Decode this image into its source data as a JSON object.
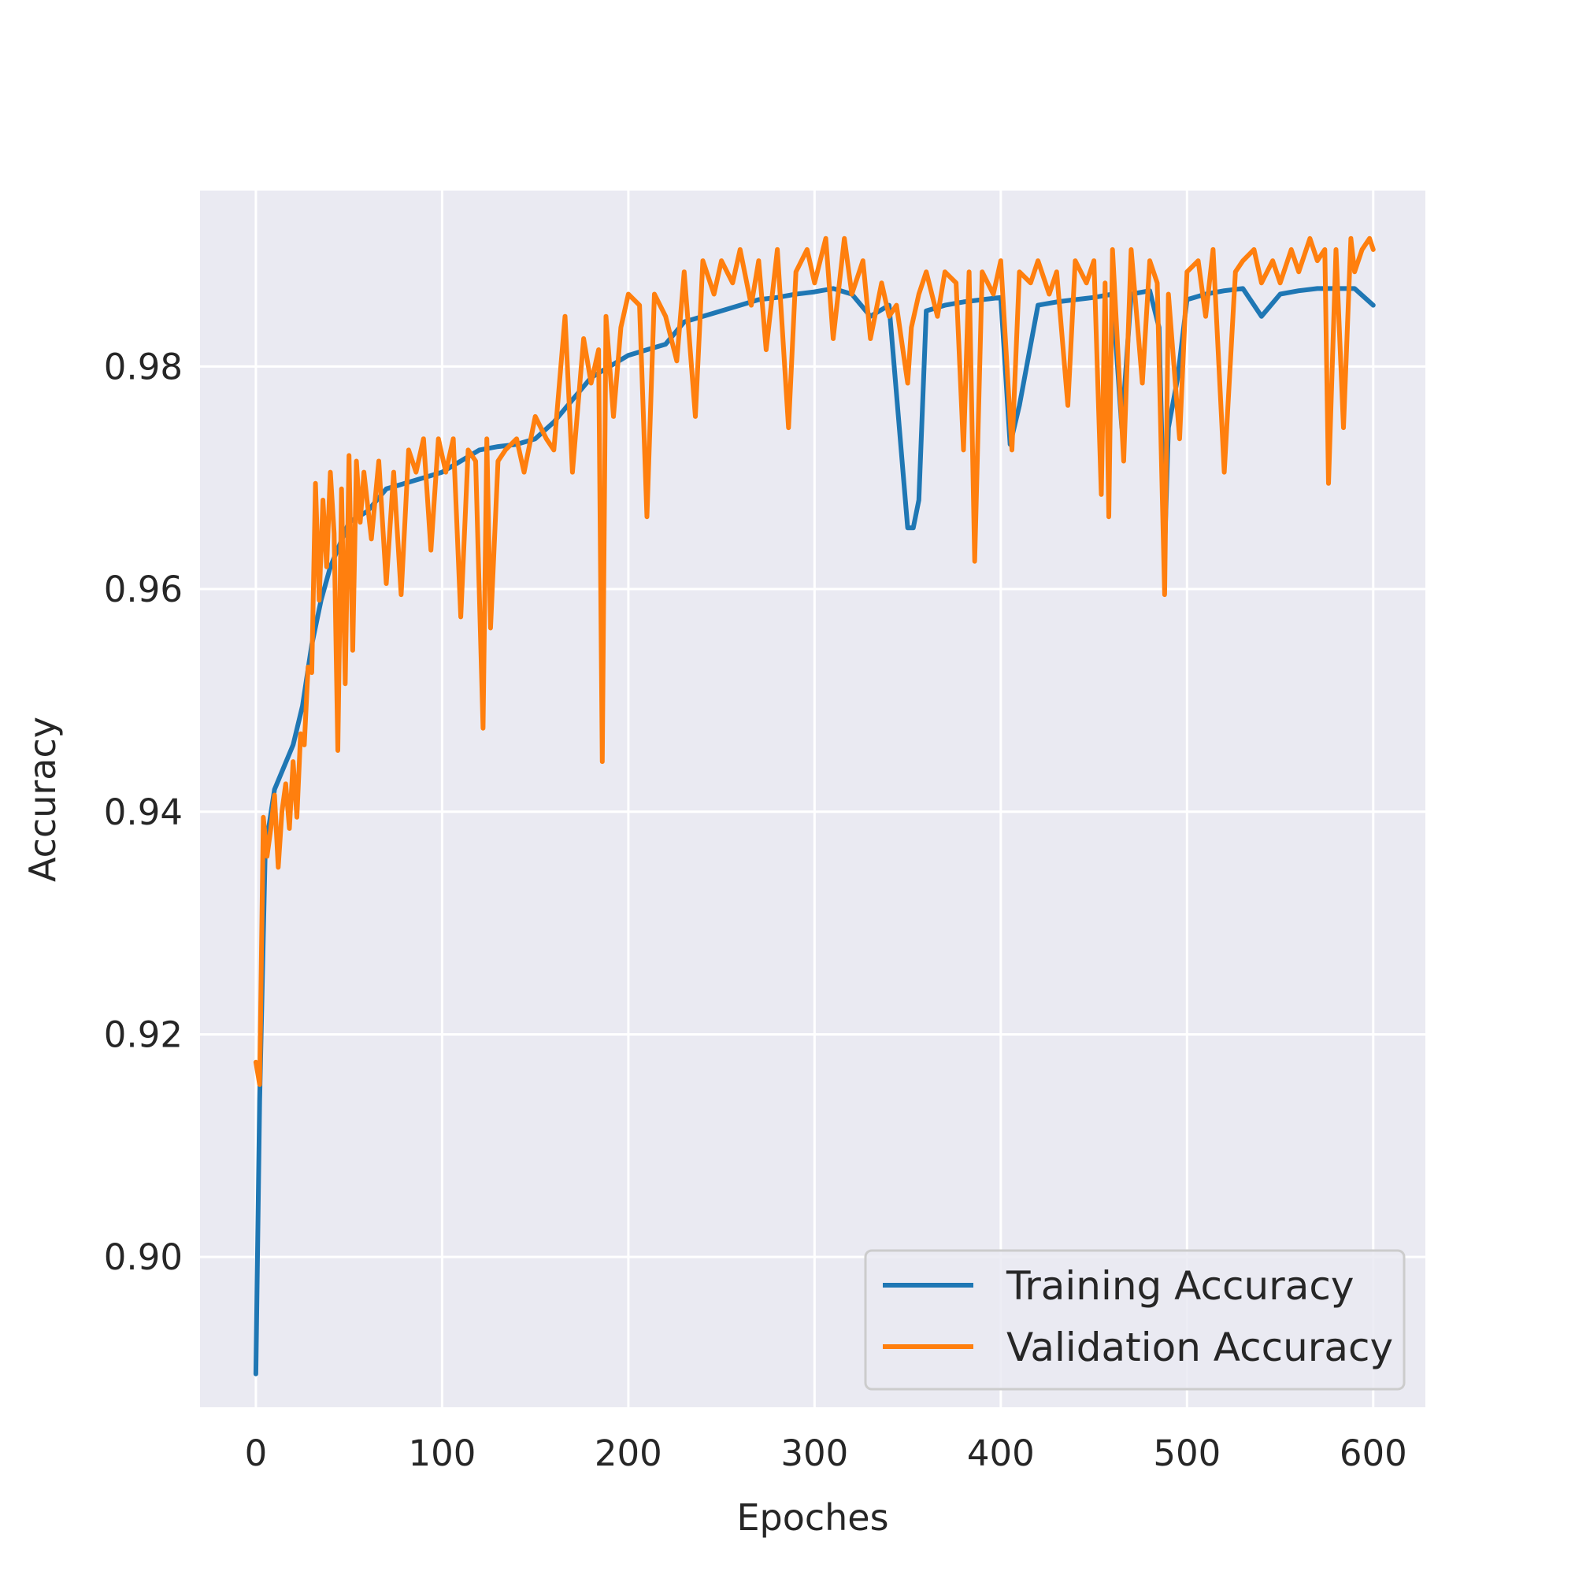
{
  "chart_data": {
    "type": "line",
    "title": "",
    "xlabel": "Epoches",
    "ylabel": "Accuracy",
    "xlim": [
      -30,
      628
    ],
    "ylim": [
      0.8865,
      0.9958
    ],
    "xticks": [
      0,
      100,
      200,
      300,
      400,
      500,
      600
    ],
    "xtick_labels": [
      "0",
      "100",
      "200",
      "300",
      "400",
      "500",
      "600"
    ],
    "yticks": [
      0.9,
      0.92,
      0.94,
      0.96,
      0.98
    ],
    "ytick_labels": [
      "0.90",
      "0.92",
      "0.94",
      "0.96",
      "0.98"
    ],
    "grid": true,
    "legend_position": "lower-right",
    "background": "#eaeaf2",
    "series": [
      {
        "name": "Training Accuracy",
        "color": "#1f77b4",
        "x": [
          0,
          2,
          5,
          10,
          15,
          20,
          25,
          30,
          35,
          40,
          45,
          50,
          55,
          60,
          70,
          80,
          90,
          100,
          110,
          120,
          130,
          140,
          150,
          160,
          170,
          180,
          190,
          200,
          210,
          220,
          230,
          240,
          250,
          260,
          270,
          280,
          290,
          300,
          310,
          320,
          330,
          340,
          350,
          353,
          356,
          360,
          370,
          380,
          390,
          400,
          405,
          410,
          420,
          430,
          440,
          450,
          460,
          465,
          470,
          480,
          485,
          488,
          490,
          495,
          500,
          510,
          520,
          530,
          540,
          550,
          560,
          570,
          580,
          590,
          600
        ],
        "y": [
          0.8895,
          0.914,
          0.9365,
          0.942,
          0.944,
          0.946,
          0.9495,
          0.955,
          0.959,
          0.962,
          0.964,
          0.966,
          0.9665,
          0.967,
          0.969,
          0.9695,
          0.97,
          0.9705,
          0.9715,
          0.9725,
          0.9728,
          0.973,
          0.9735,
          0.975,
          0.977,
          0.979,
          0.98,
          0.981,
          0.9815,
          0.982,
          0.984,
          0.9845,
          0.985,
          0.9855,
          0.986,
          0.9862,
          0.9865,
          0.9867,
          0.987,
          0.9865,
          0.9845,
          0.9855,
          0.9655,
          0.9655,
          0.968,
          0.985,
          0.9855,
          0.9858,
          0.986,
          0.9862,
          0.973,
          0.9765,
          0.9855,
          0.9858,
          0.986,
          0.9862,
          0.9865,
          0.9745,
          0.9865,
          0.9868,
          0.9835,
          0.9635,
          0.9745,
          0.979,
          0.986,
          0.9865,
          0.9868,
          0.987,
          0.9845,
          0.9865,
          0.9868,
          0.987,
          0.987,
          0.987,
          0.9855
        ]
      },
      {
        "name": "Validation Accuracy",
        "color": "#ff7f0e",
        "x": [
          0,
          2,
          4,
          6,
          8,
          10,
          12,
          14,
          16,
          18,
          20,
          22,
          24,
          26,
          28,
          30,
          32,
          34,
          36,
          38,
          40,
          42,
          44,
          46,
          48,
          50,
          52,
          54,
          56,
          58,
          62,
          66,
          70,
          74,
          78,
          82,
          86,
          90,
          94,
          98,
          102,
          106,
          110,
          114,
          118,
          122,
          124,
          126,
          130,
          134,
          140,
          144,
          150,
          156,
          160,
          166,
          170,
          176,
          180,
          184,
          186,
          188,
          192,
          196,
          200,
          206,
          210,
          214,
          220,
          226,
          230,
          236,
          240,
          246,
          250,
          256,
          260,
          266,
          270,
          274,
          280,
          286,
          290,
          296,
          300,
          306,
          310,
          316,
          320,
          326,
          330,
          336,
          340,
          344,
          350,
          352,
          356,
          360,
          366,
          370,
          376,
          380,
          383,
          386,
          390,
          396,
          400,
          406,
          410,
          416,
          420,
          426,
          430,
          436,
          440,
          446,
          450,
          454,
          456,
          458,
          460,
          466,
          470,
          476,
          480,
          484,
          488,
          490,
          496,
          500,
          506,
          510,
          514,
          520,
          526,
          530,
          536,
          540,
          546,
          550,
          556,
          560,
          566,
          570,
          574,
          576,
          580,
          584,
          588,
          590,
          594,
          598,
          600
        ],
        "y": [
          0.9175,
          0.9155,
          0.9395,
          0.936,
          0.9385,
          0.9415,
          0.935,
          0.94,
          0.9425,
          0.9385,
          0.9445,
          0.9395,
          0.947,
          0.946,
          0.953,
          0.9525,
          0.9695,
          0.959,
          0.968,
          0.962,
          0.9705,
          0.965,
          0.9455,
          0.969,
          0.9515,
          0.972,
          0.9545,
          0.9715,
          0.966,
          0.9705,
          0.9645,
          0.9715,
          0.9605,
          0.9705,
          0.9595,
          0.9725,
          0.9705,
          0.9735,
          0.9635,
          0.9735,
          0.9705,
          0.9735,
          0.9575,
          0.9725,
          0.9715,
          0.9475,
          0.9735,
          0.9565,
          0.9715,
          0.9725,
          0.9735,
          0.9705,
          0.9755,
          0.9735,
          0.9725,
          0.9845,
          0.9705,
          0.9825,
          0.9785,
          0.9815,
          0.9445,
          0.9845,
          0.9755,
          0.9835,
          0.9865,
          0.9855,
          0.9665,
          0.9865,
          0.9845,
          0.9805,
          0.9885,
          0.9755,
          0.9895,
          0.9865,
          0.9895,
          0.9875,
          0.9905,
          0.9855,
          0.9895,
          0.9815,
          0.9905,
          0.9745,
          0.9885,
          0.9905,
          0.9875,
          0.9915,
          0.9825,
          0.9915,
          0.9865,
          0.9895,
          0.9825,
          0.9875,
          0.9845,
          0.9855,
          0.9785,
          0.9835,
          0.9865,
          0.9885,
          0.9845,
          0.9885,
          0.9875,
          0.9725,
          0.9885,
          0.9625,
          0.9885,
          0.9865,
          0.9895,
          0.9725,
          0.9885,
          0.9875,
          0.9895,
          0.9865,
          0.9885,
          0.9765,
          0.9895,
          0.9875,
          0.9895,
          0.9685,
          0.9875,
          0.9665,
          0.9905,
          0.9715,
          0.9905,
          0.9785,
          0.9895,
          0.9875,
          0.9595,
          0.9865,
          0.9735,
          0.9885,
          0.9895,
          0.9845,
          0.9905,
          0.9705,
          0.9885,
          0.9895,
          0.9905,
          0.9875,
          0.9895,
          0.9875,
          0.9905,
          0.9885,
          0.9915,
          0.9895,
          0.9905,
          0.9695,
          0.9905,
          0.9745,
          0.9915,
          0.9885,
          0.9905,
          0.9915,
          0.9905
        ]
      }
    ]
  }
}
